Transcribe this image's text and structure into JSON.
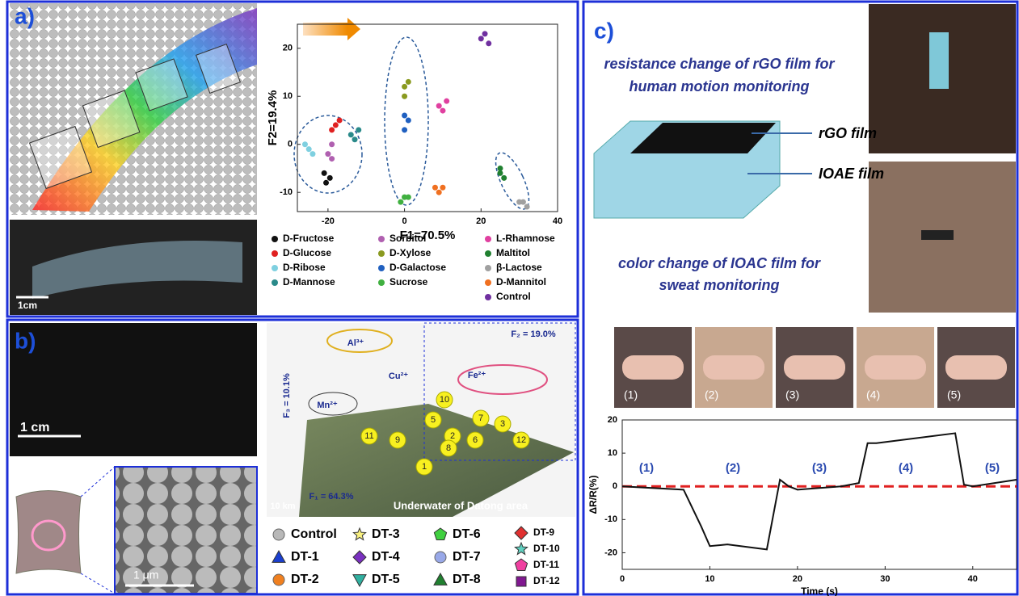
{
  "panels": {
    "a": {
      "label": "a)",
      "scale_bar": "1cm"
    },
    "b": {
      "label": "b)",
      "scale_bar_1": "1 cm",
      "scale_bar_2": "1 μm",
      "plot_labels": {
        "al": "Al³⁺",
        "cu": "Cu²⁺",
        "mn": "Mn²⁺",
        "fe": "Fe²⁺",
        "f3": "F₃ = 10.1%",
        "f1": "F₁ = 64.3%",
        "f2": "F₂ = 19.0%",
        "scale": "10 km",
        "area": "Underwater of Datong area"
      },
      "pins": [
        "1",
        "2",
        "3",
        "5",
        "6",
        "7",
        "8",
        "9",
        "10",
        "11",
        "12"
      ],
      "legend": [
        {
          "name": "Control",
          "color": "#b8b8b8",
          "shape": "circle"
        },
        {
          "name": "DT-1",
          "color": "#1a3fd0",
          "shape": "triangle"
        },
        {
          "name": "DT-2",
          "color": "#f08020",
          "shape": "circle"
        },
        {
          "name": "DT-3",
          "color": "#f8f080",
          "shape": "star"
        },
        {
          "name": "DT-4",
          "color": "#7a30c0",
          "shape": "diamond"
        },
        {
          "name": "DT-5",
          "color": "#30b0a0",
          "shape": "down"
        },
        {
          "name": "DT-6",
          "color": "#40d040",
          "shape": "pentagon"
        },
        {
          "name": "DT-7",
          "color": "#98a8e8",
          "shape": "circle"
        },
        {
          "name": "DT-8",
          "color": "#208030",
          "shape": "triangle"
        },
        {
          "name": "DT-9",
          "color": "#e03030",
          "shape": "diamond"
        },
        {
          "name": "DT-10",
          "color": "#60d0c0",
          "shape": "star"
        },
        {
          "name": "DT-11",
          "color": "#f040a0",
          "shape": "pentagon"
        },
        {
          "name": "DT-12",
          "color": "#801890",
          "shape": "square"
        }
      ]
    },
    "c": {
      "label": "c)",
      "text_1": [
        "resistance change of rGO film for",
        "human motion monitoring"
      ],
      "rgo": "rGO film",
      "ioae": "IOAE film",
      "text_2": [
        "color change of IOAC film for",
        "sweat monitoring"
      ],
      "photo_labels": [
        "(1)",
        "(2)",
        "(3)",
        "(4)",
        "(5)"
      ]
    }
  },
  "chart_data": [
    {
      "type": "scatter",
      "xlabel": "F1=70.5%",
      "ylabel": "F2=19.4%",
      "xlim": [
        -28,
        40
      ],
      "ylim": [
        -14,
        25
      ],
      "xticks": [
        -20,
        0,
        20,
        40
      ],
      "yticks": [
        -10,
        0,
        10,
        20
      ],
      "series": [
        {
          "name": "D-Fructose",
          "color": "#111111",
          "x": [
            -21,
            -19.5,
            -20.5
          ],
          "y": [
            -6,
            -7,
            -8
          ]
        },
        {
          "name": "D-Glucose",
          "color": "#e02020",
          "x": [
            -19,
            -17,
            -18
          ],
          "y": [
            3,
            5,
            4
          ]
        },
        {
          "name": "D-Ribose",
          "color": "#7fd0e0",
          "x": [
            -26,
            -24,
            -25
          ],
          "y": [
            0,
            -2,
            -1
          ]
        },
        {
          "name": "D-Mannose",
          "color": "#2a8a8a",
          "x": [
            -14,
            -12,
            -13
          ],
          "y": [
            2,
            3,
            1
          ]
        },
        {
          "name": "Sorbitol",
          "color": "#b060b0",
          "x": [
            -19,
            -20,
            -19
          ],
          "y": [
            0,
            -2,
            -3
          ]
        },
        {
          "name": "D-Xylose",
          "color": "#8a9a20",
          "x": [
            0,
            1,
            0
          ],
          "y": [
            12,
            13,
            10
          ]
        },
        {
          "name": "D-Galactose",
          "color": "#2060c0",
          "x": [
            0,
            1,
            0
          ],
          "y": [
            6,
            5,
            3
          ]
        },
        {
          "name": "Sucrose",
          "color": "#40b040",
          "x": [
            0,
            -1,
            1
          ],
          "y": [
            -11,
            -12,
            -11
          ]
        },
        {
          "name": "L-Rhamnose",
          "color": "#e040a0",
          "x": [
            9,
            11,
            10
          ],
          "y": [
            8,
            9,
            7
          ]
        },
        {
          "name": "Maltitol",
          "color": "#208030",
          "x": [
            25,
            26,
            25
          ],
          "y": [
            -6,
            -7,
            -5
          ]
        },
        {
          "name": "β-Lactose",
          "color": "#a0a0a0",
          "x": [
            31,
            32,
            30
          ],
          "y": [
            -12,
            -13,
            -12
          ]
        },
        {
          "name": "D-Mannitol",
          "color": "#f07020",
          "x": [
            8,
            10,
            9
          ],
          "y": [
            -9,
            -9,
            -10
          ]
        },
        {
          "name": "Control",
          "color": "#7030a0",
          "x": [
            20,
            22,
            21
          ],
          "y": [
            22,
            21,
            23
          ]
        }
      ]
    },
    {
      "type": "line",
      "xlabel": "Time (s)",
      "ylabel": "ΔR/R(%)",
      "xlim": [
        0,
        45
      ],
      "ylim": [
        -25,
        20
      ],
      "xticks": [
        0,
        10,
        20,
        30,
        40
      ],
      "yticks": [
        -20,
        -10,
        0,
        10,
        20
      ],
      "reference_line": {
        "value": 0,
        "color": "#e02020"
      },
      "annotations": [
        "(1)",
        "(2)",
        "(3)",
        "(4)",
        "(5)"
      ],
      "series": [
        {
          "color": "#111111",
          "x": [
            0,
            7,
            9,
            10,
            12,
            16.5,
            18,
            19,
            20,
            25,
            27,
            28,
            29,
            38,
            39,
            40,
            45
          ],
          "y": [
            0,
            -1,
            -12,
            -18,
            -17.5,
            -19,
            2,
            0,
            -1,
            0,
            1,
            13,
            13,
            16,
            0.5,
            0,
            2
          ]
        }
      ]
    }
  ]
}
